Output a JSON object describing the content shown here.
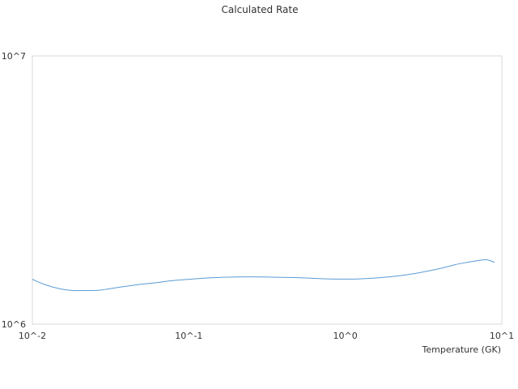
{
  "chart_data": {
    "type": "line",
    "title": "Calculated Rate",
    "xlabel": "Temperature (GK)",
    "ylabel": "",
    "x_scale": "log",
    "y_scale": "log",
    "xlim": [
      0.01,
      10
    ],
    "ylim": [
      1000000,
      10000000
    ],
    "x_tick_labels": [
      "10^-2",
      "10^-1",
      "10^0",
      "10^1"
    ],
    "y_tick_labels": [
      "10^6",
      "10^7"
    ],
    "grid": false,
    "legend": "none",
    "line_color": "#5b9bd5",
    "series": [
      {
        "x": [
          0.01,
          0.012,
          0.015,
          0.018,
          0.022,
          0.026,
          0.03,
          0.035,
          0.04,
          0.05,
          0.06,
          0.07,
          0.08,
          0.1,
          0.12,
          0.15,
          0.2,
          0.3,
          0.4,
          0.5,
          0.6,
          0.7,
          0.8,
          1.0,
          1.2,
          1.5,
          2.0,
          2.5,
          3.0,
          4.0,
          5.0,
          6.0,
          7.0,
          8.0,
          9.0
        ],
        "y": [
          1470000,
          1405000,
          1355000,
          1335000,
          1335000,
          1337000,
          1350000,
          1370000,
          1385000,
          1410000,
          1425000,
          1442000,
          1455000,
          1470000,
          1482000,
          1492000,
          1500000,
          1500000,
          1494000,
          1490000,
          1484000,
          1478000,
          1474000,
          1472000,
          1474000,
          1484000,
          1505000,
          1530000,
          1557000,
          1610000,
          1665000,
          1700000,
          1725000,
          1738000,
          1700000
        ]
      }
    ]
  }
}
